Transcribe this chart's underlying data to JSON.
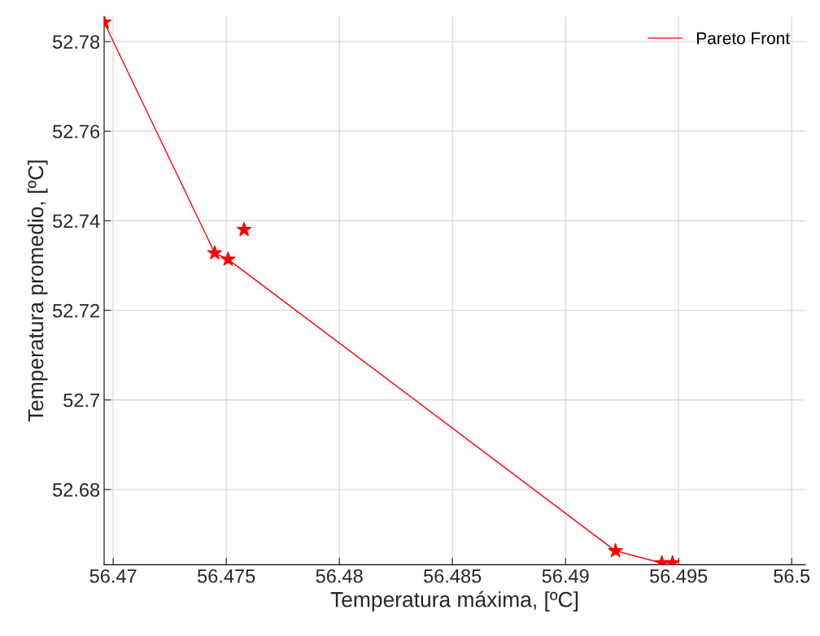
{
  "chart_data": {
    "type": "line",
    "xlabel": "Temperatura máxima, [ºC]",
    "ylabel": "Temperatura promedio, [ºC]",
    "xlim": [
      56.4696,
      56.5006
    ],
    "xticks": [
      56.47,
      56.475,
      56.48,
      56.485,
      56.49,
      56.495,
      56.5
    ],
    "ylim": [
      52.6632,
      52.7856
    ],
    "yticks": [
      52.68,
      52.7,
      52.72,
      52.74,
      52.76,
      52.78
    ],
    "grid": true,
    "legend": "top right",
    "series": [
      {
        "name": "Pareto Front",
        "color": "#ff0000",
        "marker": "none",
        "x": [
          56.4696,
          56.47449,
          56.47508,
          56.49221,
          56.49426,
          56.49473
        ],
        "values": [
          52.7843,
          52.7328,
          52.7314,
          52.6663,
          52.6636,
          52.6636
        ]
      },
      {
        "type": "scatter",
        "color": "#ff0000",
        "marker": "star",
        "x": [
          56.4696,
          56.47449,
          56.47508,
          56.47579,
          56.49221,
          56.49426,
          56.49473
        ],
        "values": [
          52.7843,
          52.7328,
          52.7314,
          52.738,
          52.6663,
          52.6636,
          52.6636
        ]
      }
    ]
  }
}
